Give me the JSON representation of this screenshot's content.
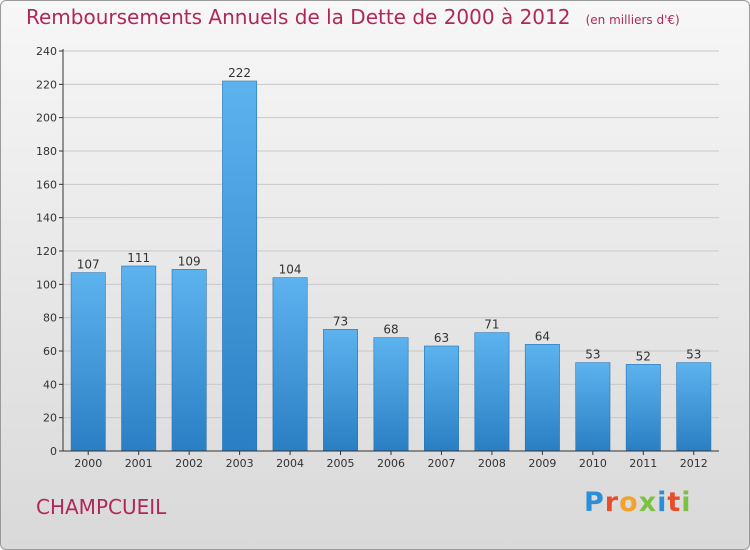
{
  "title": "Remboursements Annuels de la Dette de 2000 à 2012",
  "unit_label": "(en milliers d'€)",
  "city": "CHAMPCUEIL",
  "logo": {
    "letters": [
      "P",
      "r",
      "o",
      "x",
      "i",
      "t",
      "i"
    ],
    "colors": [
      "#2a8fd8",
      "#e84c2b",
      "#f2a12a",
      "#7cc242",
      "#2a8fd8",
      "#e84c2b",
      "#7cc242"
    ]
  },
  "colors": {
    "bar": "#3f9be0",
    "title": "#b0285a",
    "axis": "#333333",
    "grid": "#c8c8c8"
  },
  "chart_data": {
    "type": "bar",
    "title": "Remboursements Annuels de la Dette de 2000 à 2012",
    "subtitle": "(en milliers d'€)",
    "xlabel": "",
    "ylabel": "",
    "categories": [
      "2000",
      "2001",
      "2002",
      "2003",
      "2004",
      "2005",
      "2006",
      "2007",
      "2008",
      "2009",
      "2010",
      "2011",
      "2012"
    ],
    "values": [
      107,
      111,
      109,
      222,
      104,
      73,
      68,
      63,
      71,
      64,
      53,
      52,
      53
    ],
    "ylim": [
      0,
      240
    ],
    "yticks": [
      0,
      20,
      40,
      60,
      80,
      100,
      120,
      140,
      160,
      180,
      200,
      220,
      240
    ],
    "grid": true,
    "data_labels": true
  }
}
